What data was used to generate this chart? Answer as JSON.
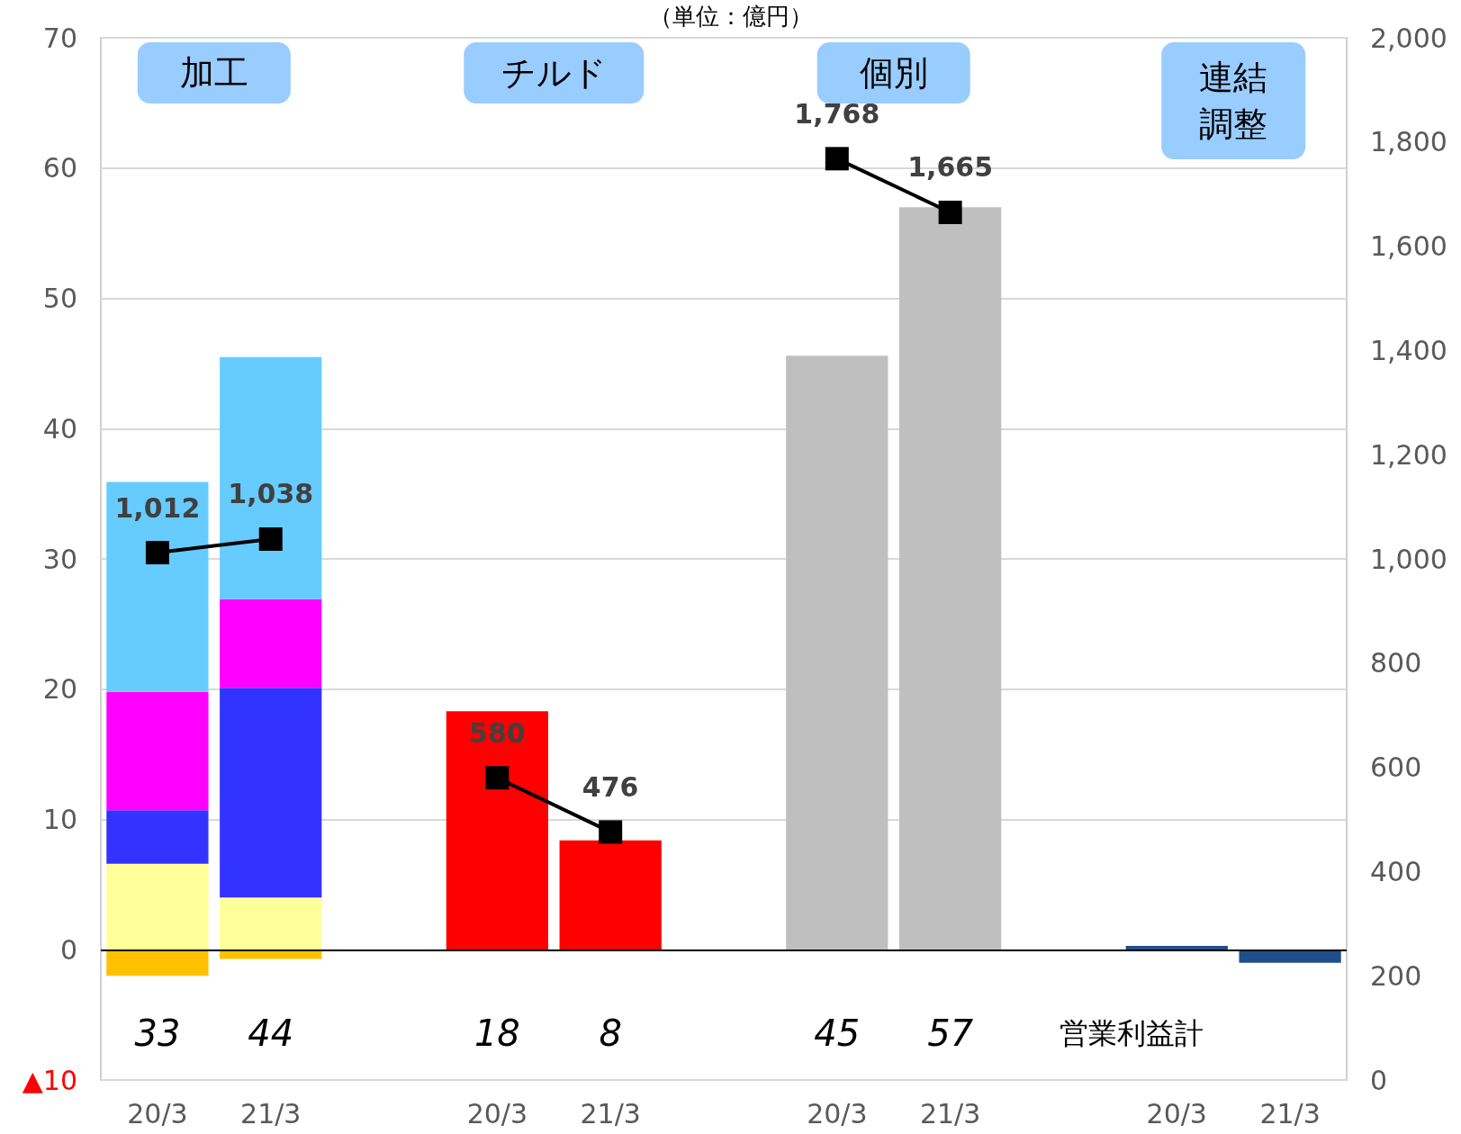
{
  "chart_data": {
    "type": "bar",
    "title": "（単位：億円）",
    "stacked": true,
    "categories": [
      "20/3",
      "21/3",
      null,
      "20/3",
      "21/3",
      null,
      "20/3",
      "21/3",
      null,
      "20/3",
      "21/3"
    ],
    "series": [
      {
        "color": "#ffc000",
        "values": [
          -2.0,
          -0.7,
          null,
          null,
          null,
          null,
          null,
          null,
          null,
          null,
          null
        ]
      },
      {
        "color": "#ffff99",
        "values": [
          6.6,
          4.0,
          null,
          null,
          null,
          null,
          null,
          null,
          null,
          null,
          null
        ]
      },
      {
        "color": "#3333ff",
        "values": [
          4.1,
          16.1,
          null,
          null,
          null,
          null,
          null,
          null,
          null,
          null,
          null
        ]
      },
      {
        "color": "#ff00ff",
        "values": [
          9.1,
          6.8,
          null,
          null,
          null,
          null,
          null,
          null,
          null,
          null,
          null
        ]
      },
      {
        "color": "#66ccff",
        "values": [
          16.1,
          18.6,
          null,
          null,
          null,
          null,
          null,
          null,
          null,
          null,
          null
        ]
      },
      {
        "color": "#ff0000",
        "values": [
          null,
          null,
          null,
          18.3,
          8.4,
          null,
          null,
          null,
          null,
          null,
          null
        ]
      },
      {
        "color": "#bfbfbf",
        "values": [
          null,
          null,
          null,
          null,
          null,
          null,
          45.6,
          57.0,
          null,
          null,
          null
        ]
      },
      {
        "color": "#1f4e8c",
        "values": [
          null,
          null,
          null,
          null,
          null,
          null,
          null,
          null,
          null,
          0.3,
          -1.0
        ]
      },
      {
        "type": "line",
        "axis": "y2",
        "color": "#000000",
        "marker": "square",
        "line_style": "solid",
        "values": [
          1012,
          1038,
          null,
          580,
          476,
          null,
          1768,
          1665,
          null,
          null,
          null
        ],
        "value_labels": [
          "1,012",
          "1,038",
          null,
          "580",
          "476",
          null,
          "1,768",
          "1,665",
          null,
          null,
          null
        ]
      }
    ],
    "totals": [
      "33",
      "44",
      null,
      "18",
      "8",
      null,
      "45",
      "57",
      null,
      null,
      null
    ],
    "annotations": [
      "加工",
      "チルド",
      "個別",
      "連結調整",
      "営業利益計"
    ],
    "ylim": [
      -10,
      70
    ],
    "yticks": [
      {
        "value": -10,
        "label": "▲10"
      },
      0,
      10,
      20,
      30,
      40,
      50,
      60,
      70
    ],
    "y2lim": [
      0,
      2000
    ],
    "y2ticks": [
      0,
      200,
      400,
      600,
      800,
      {
        "value": 1000,
        "label": "1,000"
      },
      {
        "value": 1200,
        "label": "1,200"
      },
      {
        "value": 1400,
        "label": "1,400"
      },
      {
        "value": 1600,
        "label": "1,600"
      },
      {
        "value": 1800,
        "label": "1,800"
      },
      {
        "value": 2000,
        "label": "2,000"
      }
    ],
    "grid": "y"
  }
}
